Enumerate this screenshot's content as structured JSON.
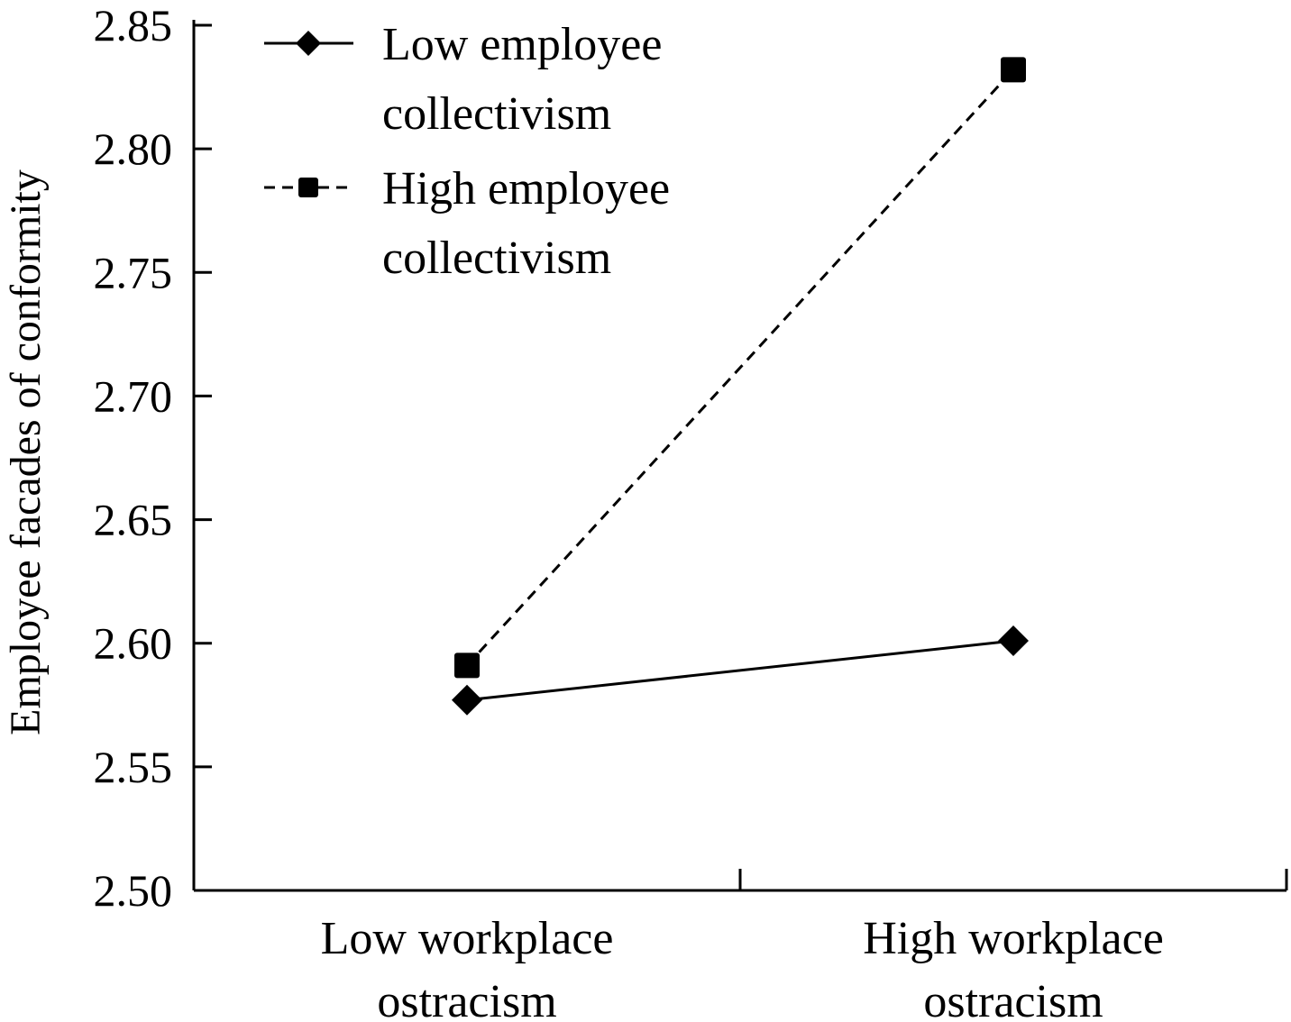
{
  "chart_data": {
    "type": "line",
    "title": "",
    "xlabel": "",
    "ylabel": "Employee facades of conformity",
    "categories": [
      [
        "Low workplace",
        "ostracism"
      ],
      [
        "High workplace",
        "ostracism"
      ]
    ],
    "ylim": [
      2.5,
      2.85
    ],
    "yticks": [
      "2.50",
      "2.55",
      "2.60",
      "2.65",
      "2.70",
      "2.75",
      "2.80",
      "2.85"
    ],
    "grid": false,
    "legend_position": "top-left",
    "series": [
      {
        "name": [
          "Low employee",
          "collectivism"
        ],
        "values": [
          2.577,
          2.601
        ],
        "marker": "diamond",
        "line_style": "solid",
        "color": "#000000"
      },
      {
        "name": [
          "High employee",
          "collectivism"
        ],
        "values": [
          2.591,
          2.832
        ],
        "marker": "square",
        "line_style": "dashed",
        "color": "#000000"
      }
    ]
  }
}
